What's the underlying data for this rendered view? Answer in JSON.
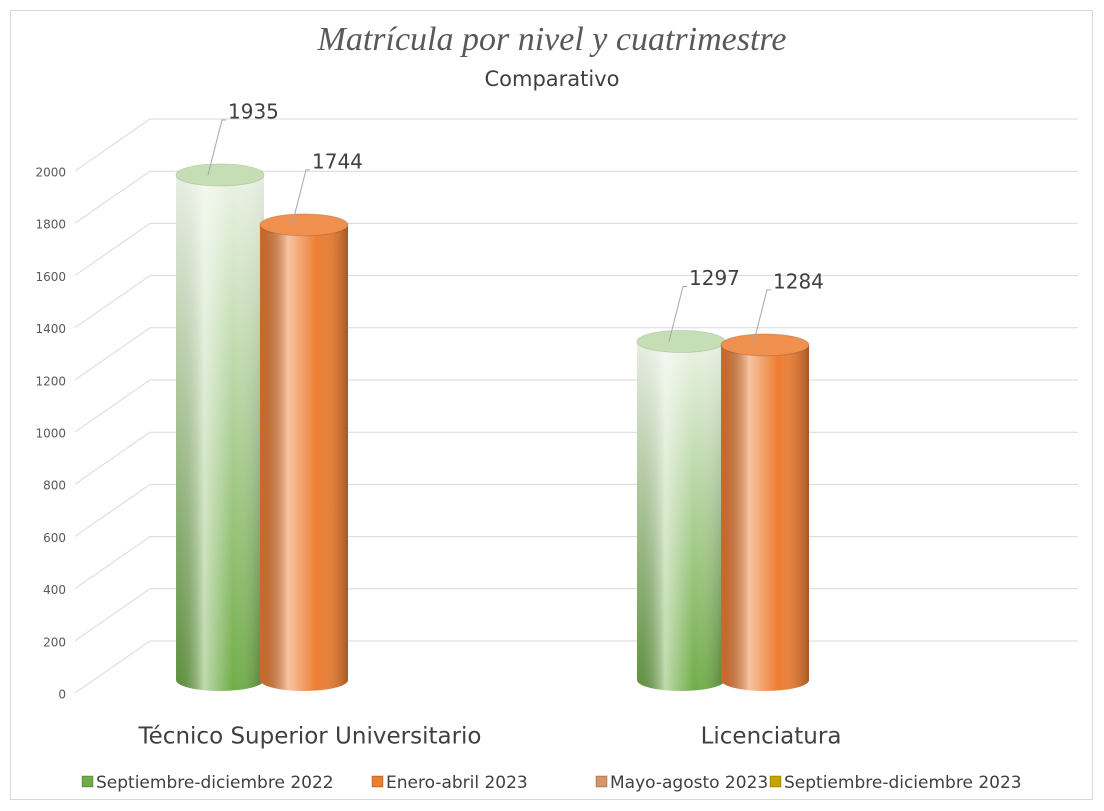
{
  "chart_data": {
    "type": "bar",
    "title": "Matrícula por nivel y cuatrimestre",
    "subtitle": "Comparativo",
    "categories": [
      "Técnico Superior Universitario",
      "Licenciatura"
    ],
    "series": [
      {
        "name": "Septiembre-diciembre 2022",
        "color": "#70ad47",
        "values": [
          1935,
          1297
        ]
      },
      {
        "name": "Enero-abril 2023",
        "color": "#ed7d31",
        "values": [
          1744,
          1284
        ]
      },
      {
        "name": "Mayo-agosto 2023",
        "color": "#d9956a",
        "values": [
          null,
          null
        ]
      },
      {
        "name": "Septiembre-diciembre 2023",
        "color": "#c9a400",
        "values": [
          null,
          null
        ]
      }
    ],
    "ylim": [
      0,
      2000
    ],
    "yticks": [
      0,
      200,
      400,
      600,
      800,
      1000,
      1200,
      1400,
      1600,
      1800,
      2000
    ],
    "grid": true,
    "legend": "bottom"
  }
}
